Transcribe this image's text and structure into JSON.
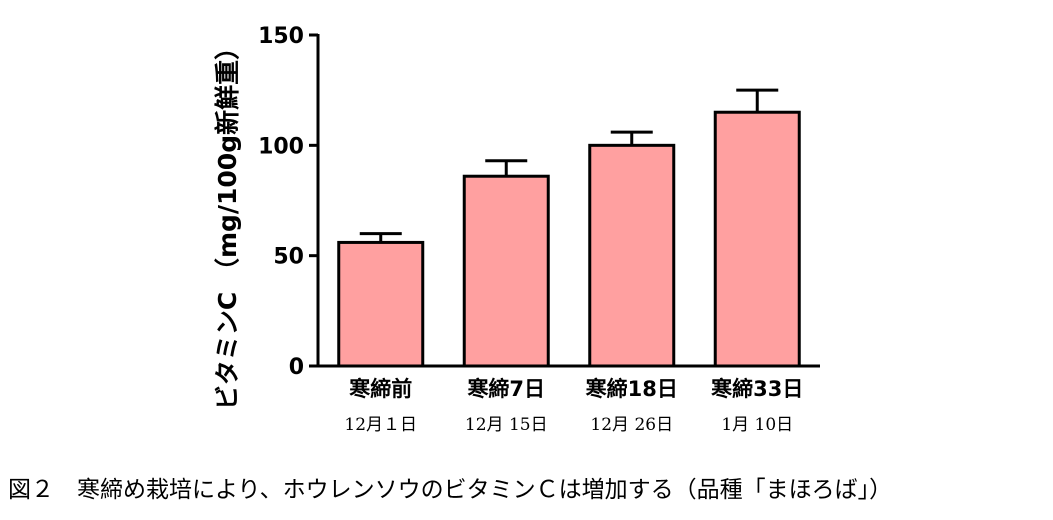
{
  "chart_data": {
    "type": "bar",
    "categories": [
      "寒締前",
      "寒締7日",
      "寒締18日",
      "寒締33日"
    ],
    "dates": [
      "12月１日",
      "12月 15日",
      "12月 26日",
      "1月 10日"
    ],
    "values": [
      56,
      86,
      100,
      115
    ],
    "errors": [
      4,
      7,
      6,
      10
    ],
    "ylabel": "ビタミンC （mg/100g新鮮重）",
    "ylim": [
      0,
      150
    ],
    "yticks": [
      0,
      50,
      100,
      150
    ],
    "grid": false,
    "bar_color": "#ffa0a0",
    "edge_color": "#000000"
  },
  "caption": "図２　寒締め栽培により、ホウレンソウのビタミンＣは増加する（品種「まほろば」）"
}
